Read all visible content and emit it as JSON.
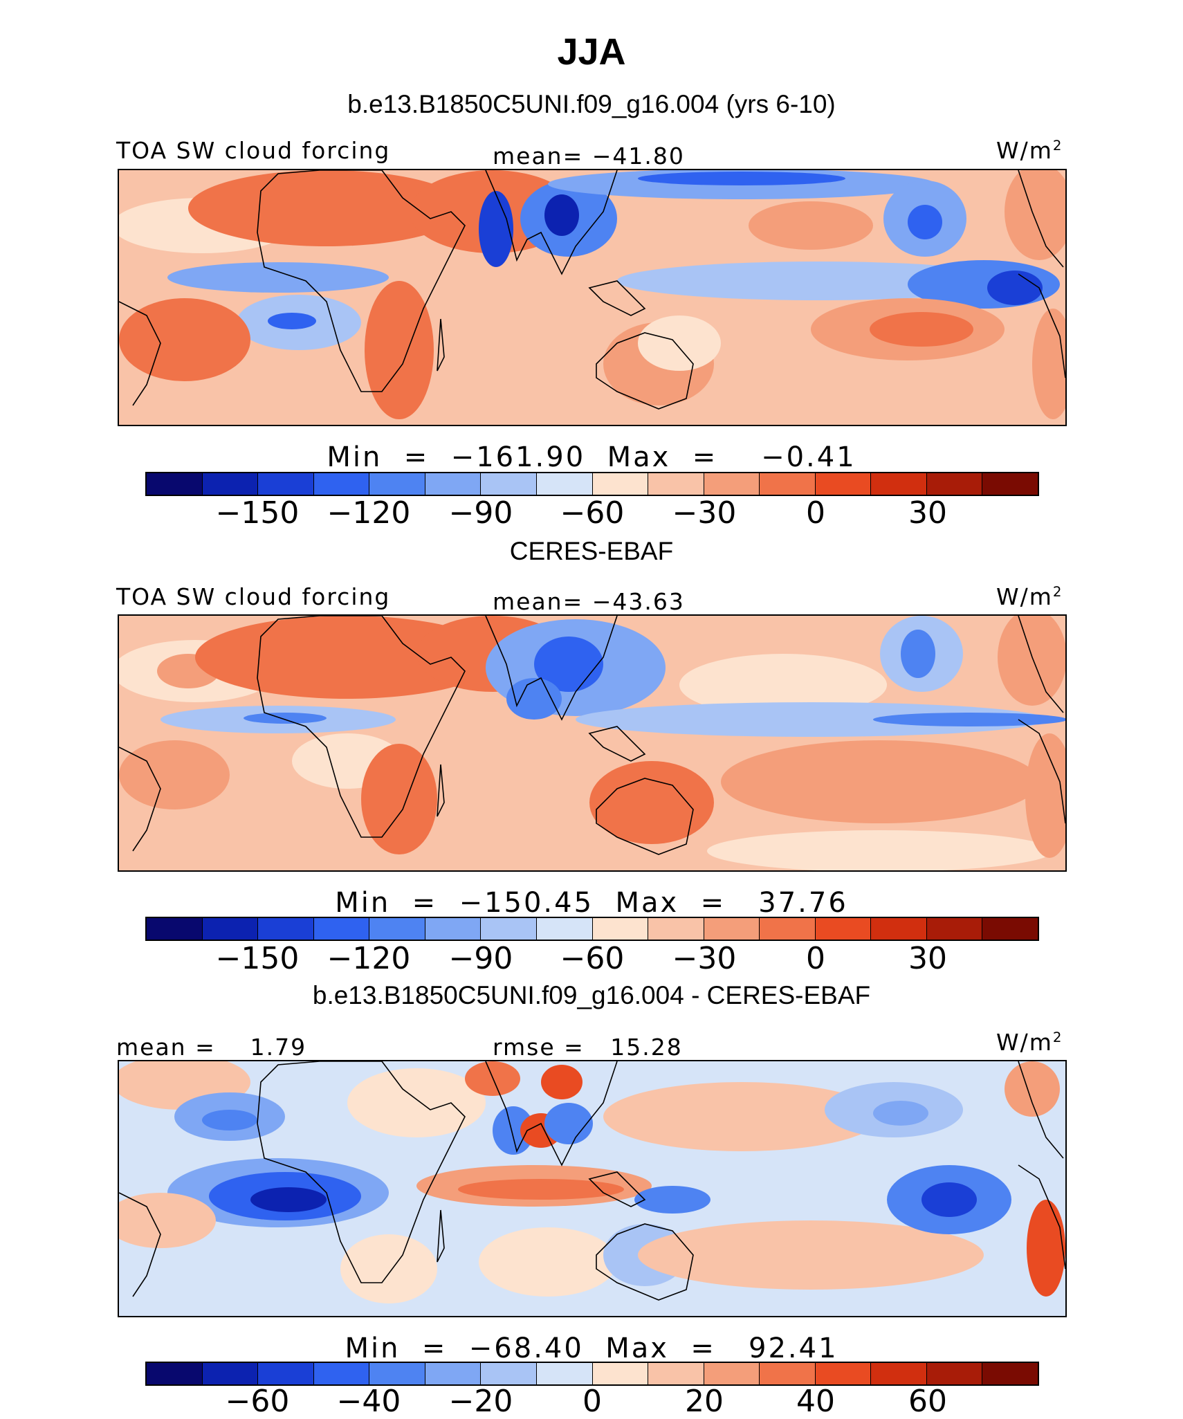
{
  "title": "JJA",
  "colors": [
    "#08086e",
    "#0c22b0",
    "#1a3fd6",
    "#2f62f0",
    "#4e83f2",
    "#7fa7f4",
    "#a9c4f5",
    "#d6e4f8",
    "#fde3cf",
    "#f9c3a8",
    "#f49e7a",
    "#f07349",
    "#e94b22",
    "#d12f0f",
    "#a81c08",
    "#7a0b02"
  ],
  "chart_data": [
    {
      "type": "heatmap",
      "subtitle": "b.e13.B1850C5UNI.f09_g16.004 (yrs 6-10)",
      "left_label": "TOA SW cloud forcing",
      "center_label": "mean= −41.80",
      "units": "W/m",
      "units_sup": "2",
      "min_max": "Min  =  −161.90  Max  =    −0.41",
      "min": -161.9,
      "max": -0.41,
      "mean": -41.8,
      "colorbar_ticks": [
        "−150",
        "−120",
        "−90",
        "−60",
        "−30",
        "0",
        "30"
      ]
    },
    {
      "type": "heatmap",
      "subtitle": "CERES-EBAF",
      "left_label": "TOA SW cloud forcing",
      "center_label": "mean= −43.63",
      "units": "W/m",
      "units_sup": "2",
      "min_max": "Min  =  −150.45  Max  =   37.76",
      "min": -150.45,
      "max": 37.76,
      "mean": -43.63,
      "colorbar_ticks": [
        "−150",
        "−120",
        "−90",
        "−60",
        "−30",
        "0",
        "30"
      ]
    },
    {
      "type": "heatmap",
      "subtitle": "b.e13.B1850C5UNI.f09_g16.004 - CERES-EBAF",
      "left_label": "mean =    1.79",
      "center_label": "rmse =   15.28",
      "units": "W/m",
      "units_sup": "2",
      "min_max": "Min  =  −68.40  Max  =   92.41",
      "min": -68.4,
      "max": 92.41,
      "mean": 1.79,
      "rmse": 15.28,
      "colorbar_ticks": [
        "−60",
        "−40",
        "−20",
        "0",
        "20",
        "40",
        "60"
      ]
    }
  ]
}
